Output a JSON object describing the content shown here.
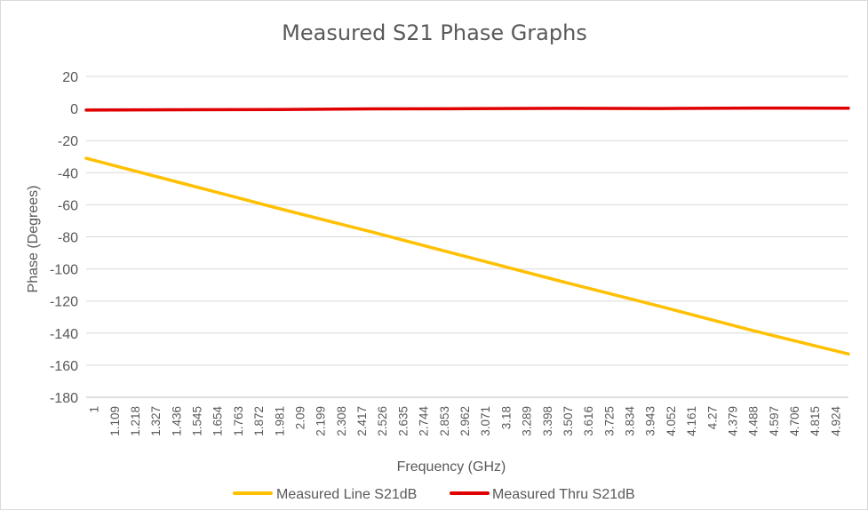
{
  "chart_data": {
    "type": "line",
    "title": "Measured S21 Phase Graphs",
    "xlabel": "Frequency (GHz)",
    "ylabel": "Phase (Degrees)",
    "ylim": [
      -180,
      20
    ],
    "yticks": [
      20,
      0,
      -20,
      -40,
      -60,
      -80,
      -100,
      -120,
      -140,
      -160,
      -180
    ],
    "xlim": [
      1,
      5
    ],
    "xtick_labels": [
      "1",
      "1.109",
      "1.218",
      "1.327",
      "1.436",
      "1.545",
      "1.654",
      "1.763",
      "1.872",
      "1.981",
      "2.09",
      "2.199",
      "2.308",
      "2.417",
      "2.526",
      "2.635",
      "2.744",
      "2.853",
      "2.962",
      "3.071",
      "3.18",
      "3.289",
      "3.398",
      "3.507",
      "3.616",
      "3.725",
      "3.834",
      "3.943",
      "4.052",
      "4.161",
      "4.27",
      "4.379",
      "4.488",
      "4.597",
      "4.706",
      "4.815",
      "4.924"
    ],
    "grid": true,
    "legend_position": "bottom",
    "series": [
      {
        "name": "Measured Line S21dB",
        "color": "#ffc000",
        "x": [
          1,
          1.5,
          2,
          2.5,
          3,
          3.5,
          4,
          4.5,
          5
        ],
        "values": [
          -31,
          -46.5,
          -62,
          -77,
          -92.5,
          -108,
          -123,
          -138.5,
          -153
        ]
      },
      {
        "name": "Measured Thru S21dB",
        "color": "#e00000",
        "x": [
          1,
          1.5,
          2,
          2.5,
          3,
          3.5,
          4,
          4.5,
          5
        ],
        "values": [
          -1,
          -0.8,
          -0.6,
          -0.2,
          -0.1,
          0.1,
          0,
          0.3,
          0.2
        ]
      }
    ]
  }
}
